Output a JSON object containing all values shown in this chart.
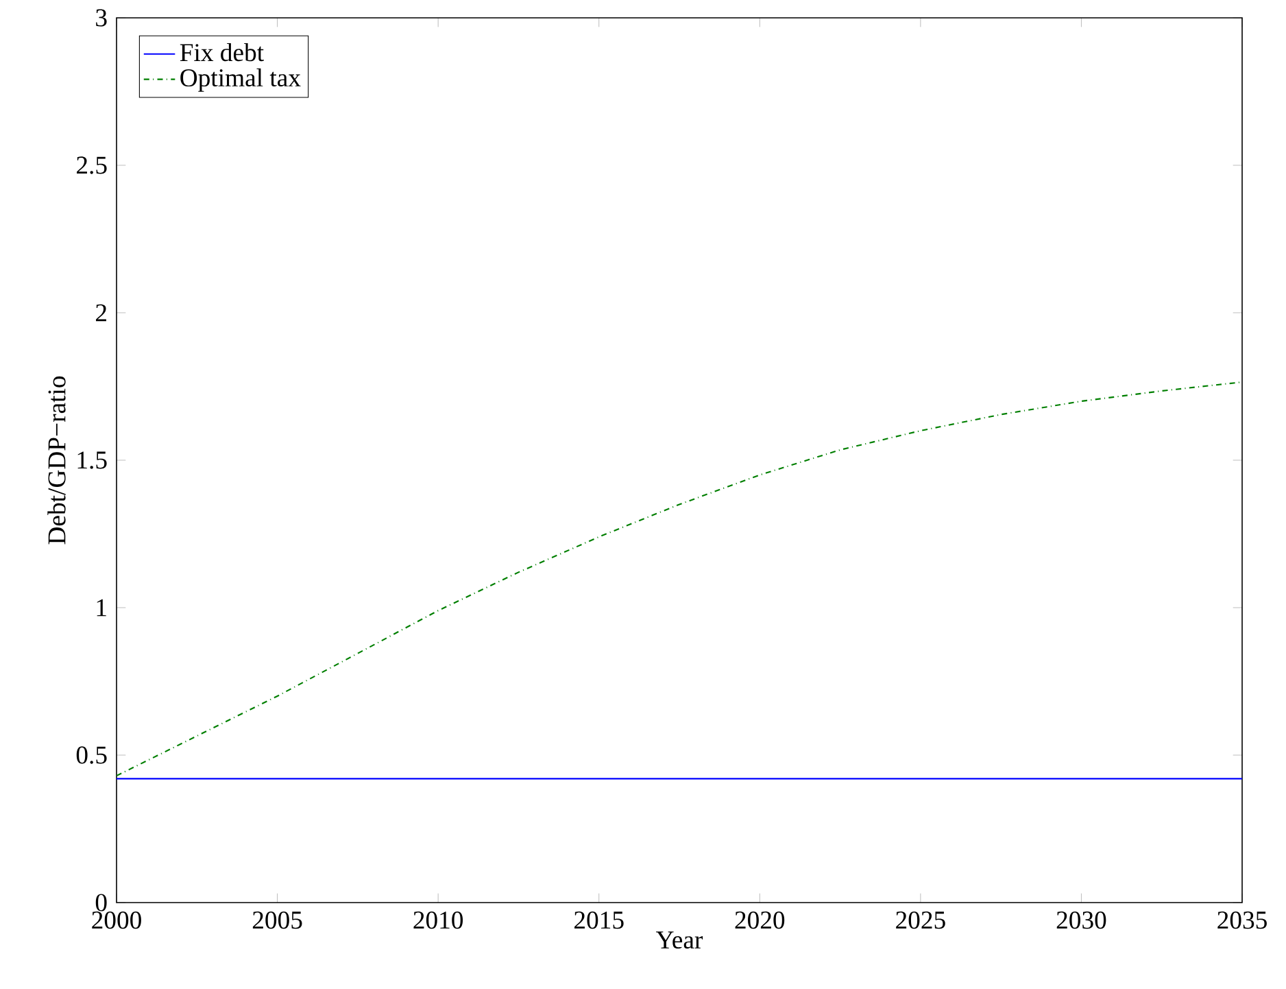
{
  "chart_data": {
    "type": "line",
    "xlabel": "Year",
    "ylabel": "Debt/GDP−ratio",
    "xlim": [
      2000,
      2035
    ],
    "ylim": [
      0,
      3
    ],
    "xticks": [
      2000,
      2005,
      2010,
      2015,
      2020,
      2025,
      2030,
      2035
    ],
    "yticks": [
      0,
      0.5,
      1,
      1.5,
      2,
      2.5,
      3
    ],
    "legend": "top left",
    "grid": false,
    "series": [
      {
        "name": "Fix debt",
        "color": "#0000ff",
        "line_style": "solid",
        "x": [
          2000,
          2035
        ],
        "values": [
          0.42,
          0.42
        ]
      },
      {
        "name": "Optimal tax",
        "color": "#007f00",
        "line_style": "dashdot",
        "x": [
          2000,
          2002.5,
          2005,
          2007.5,
          2010,
          2012.5,
          2015,
          2017.5,
          2020,
          2022.5,
          2025,
          2027.5,
          2030,
          2032.5,
          2035
        ],
        "values": [
          0.43,
          0.565,
          0.7,
          0.845,
          0.99,
          1.12,
          1.24,
          1.35,
          1.45,
          1.535,
          1.6,
          1.655,
          1.7,
          1.735,
          1.765
        ]
      }
    ]
  }
}
